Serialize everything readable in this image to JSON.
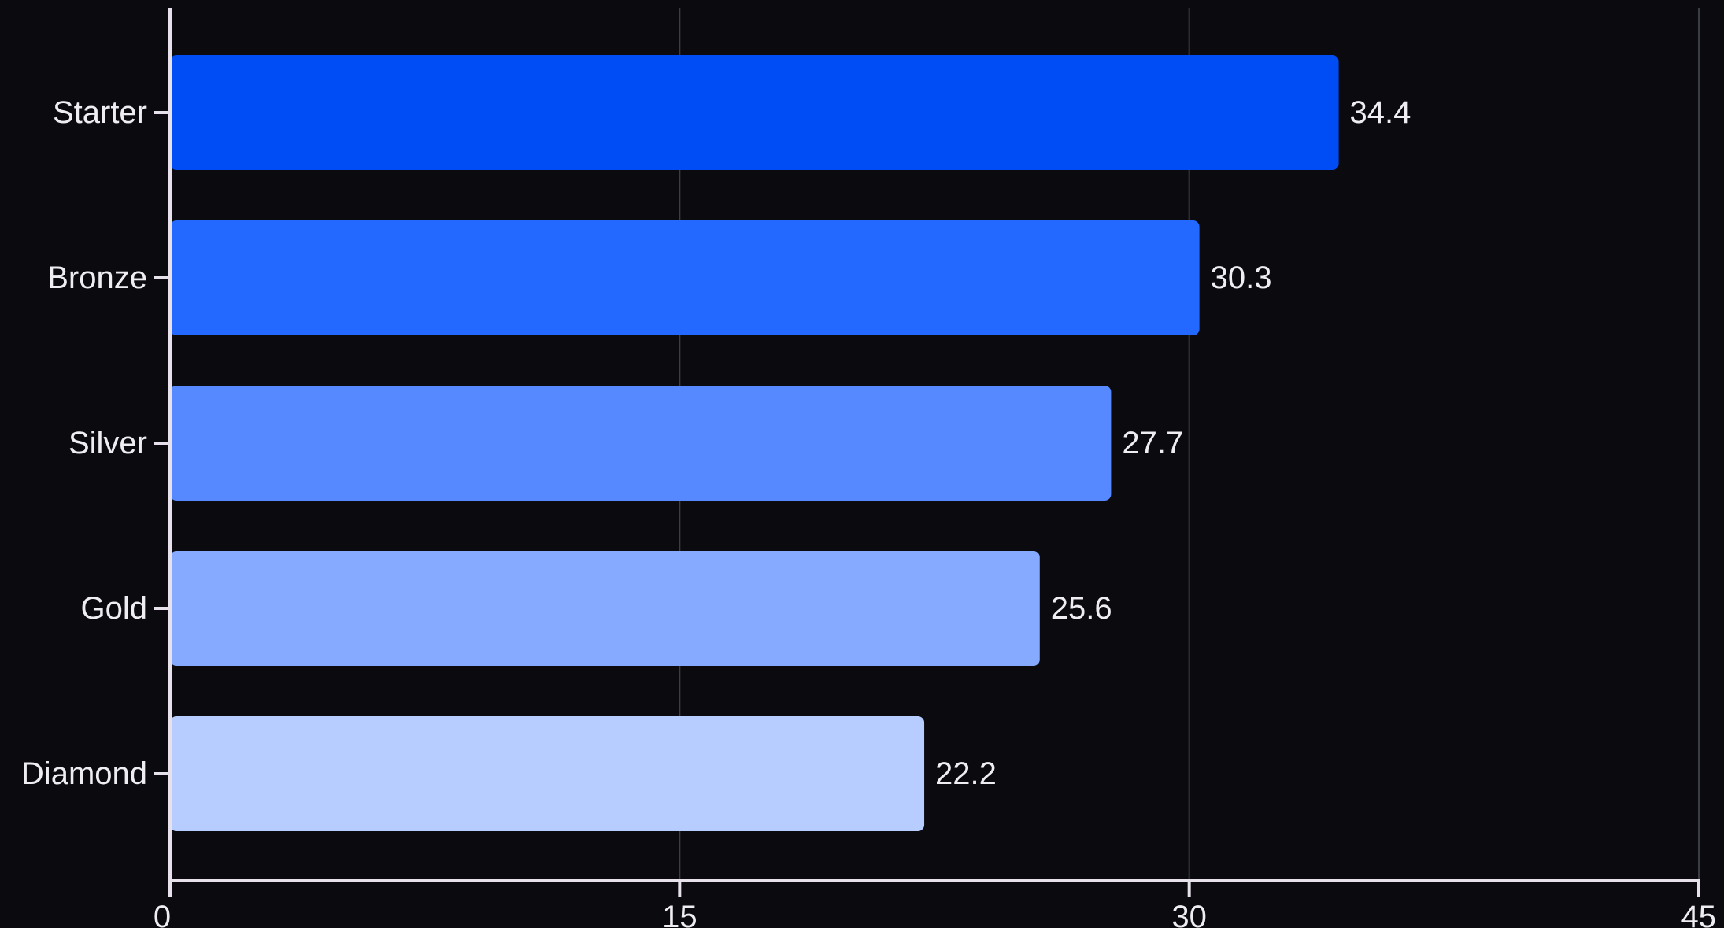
{
  "chart_data": {
    "type": "bar",
    "orientation": "horizontal",
    "categories": [
      "Starter",
      "Bronze",
      "Silver",
      "Gold",
      "Diamond"
    ],
    "values": [
      34.4,
      30.3,
      27.7,
      25.6,
      22.2
    ],
    "value_labels": [
      "34.4",
      "30.3",
      "27.7",
      "25.6",
      "22.2"
    ],
    "xlim": [
      0,
      45
    ],
    "x_ticks": [
      0,
      15,
      30,
      45
    ],
    "x_tick_labels": [
      "0",
      "15",
      "30",
      "45"
    ],
    "grid": "vertical",
    "title": "",
    "xlabel": "",
    "ylabel": "",
    "colors": [
      "#004cf5",
      "#2469ff",
      "#5689ff",
      "#85aaff",
      "#b7cdff"
    ],
    "background": "#0a0a0f",
    "axis_color": "#e6e1ea",
    "grid_color": "#3a3d45",
    "text_color": "#f0edf2"
  }
}
